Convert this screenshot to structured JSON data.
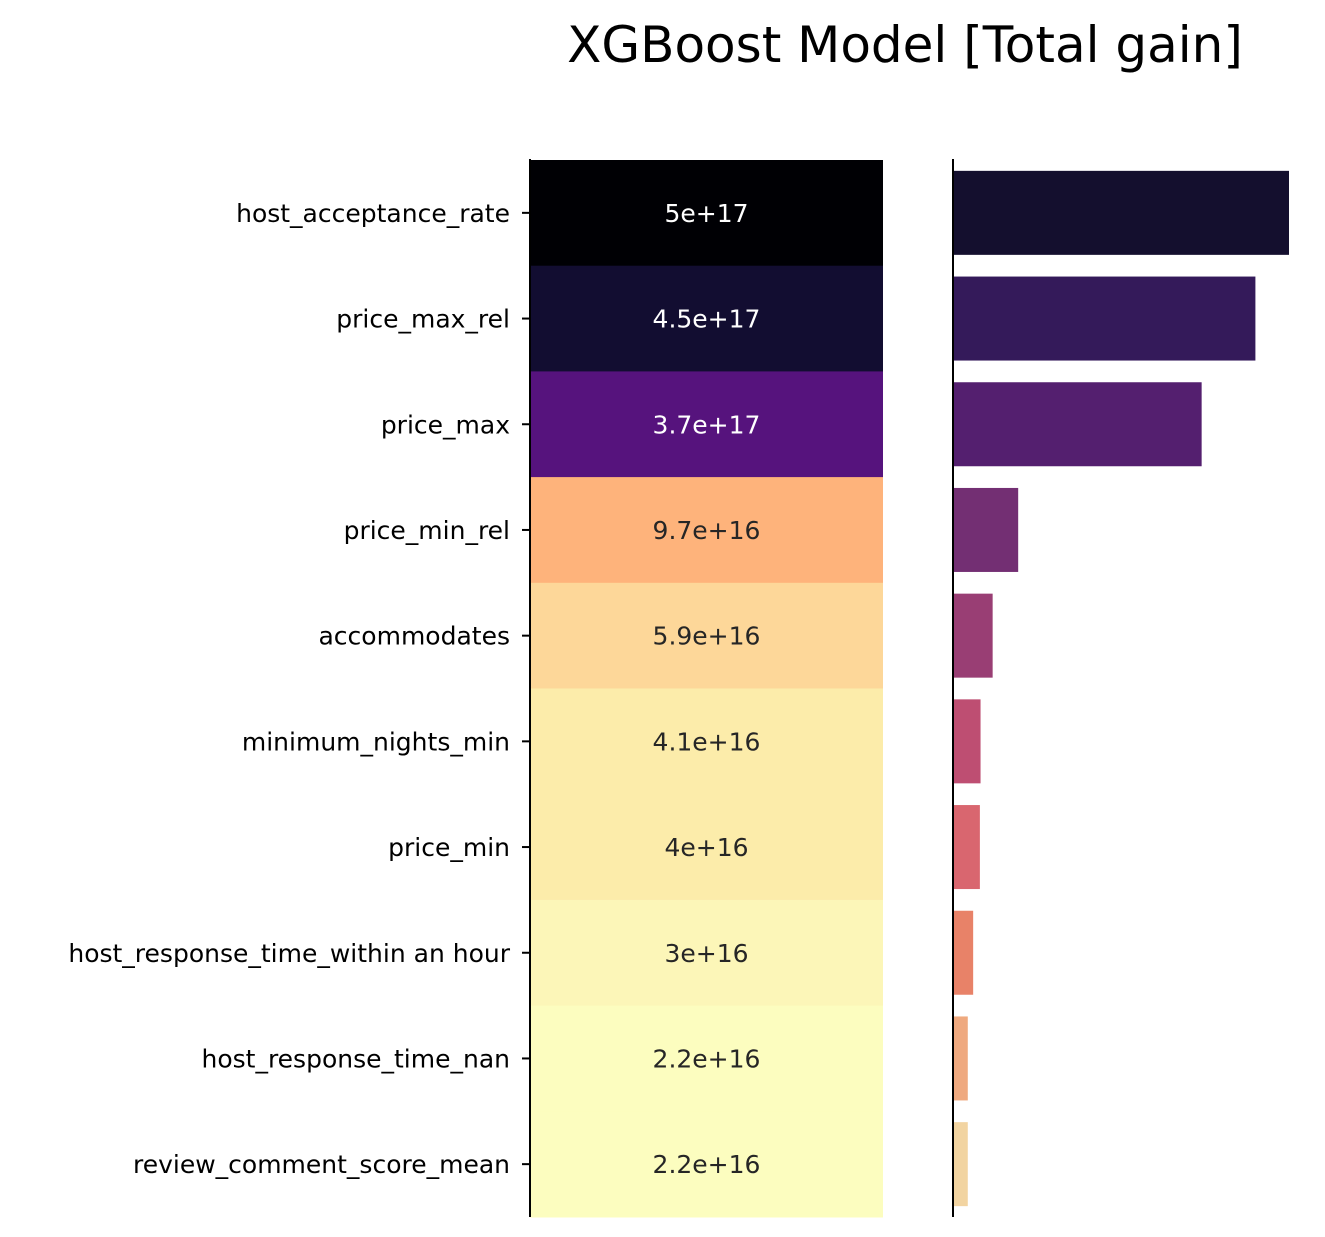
{
  "chart_data": {
    "type": "heatmap",
    "title": "XGBoost Model [Total gain]",
    "categories": [
      "host_acceptance_rate",
      "price_max_rel",
      "price_max",
      "price_min_rel",
      "accommodates",
      "minimum_nights_min",
      "price_min",
      "host_response_time_within an hour",
      "host_response_time_nan",
      "review_comment_score_mean"
    ],
    "values": [
      5e+17,
      4.5e+17,
      3.7e+17,
      9.7e+16,
      5.9e+16,
      4.1e+16,
      4e+16,
      3e+16,
      2.2e+16,
      2.2e+16
    ],
    "value_labels": [
      "5e+17",
      "4.5e+17",
      "3.7e+17",
      "9.7e+16",
      "5.9e+16",
      "4.1e+16",
      "4e+16",
      "3e+16",
      "2.2e+16",
      "2.2e+16"
    ],
    "heatmap_colors": [
      "#000004",
      "#120d31",
      "#56137d",
      "#feb37b",
      "#fdd799",
      "#fcecaa",
      "#fcecaa",
      "#fcf6b8",
      "#fcfdbf",
      "#fcfdbf"
    ],
    "heatmap_text_colors": [
      "#ffffff",
      "#ffffff",
      "#ffffff",
      "#262626",
      "#262626",
      "#262626",
      "#262626",
      "#262626",
      "#262626",
      "#262626"
    ],
    "bar_colors": [
      "#140f2e",
      "#341a5a",
      "#541f6f",
      "#732f73",
      "#993e74",
      "#be4e72",
      "#d9666f",
      "#e88268",
      "#efa97f",
      "#f2d4a1"
    ],
    "xlim": [
      0,
      5e+17
    ],
    "colormap": "magma_r",
    "legend": "none"
  }
}
